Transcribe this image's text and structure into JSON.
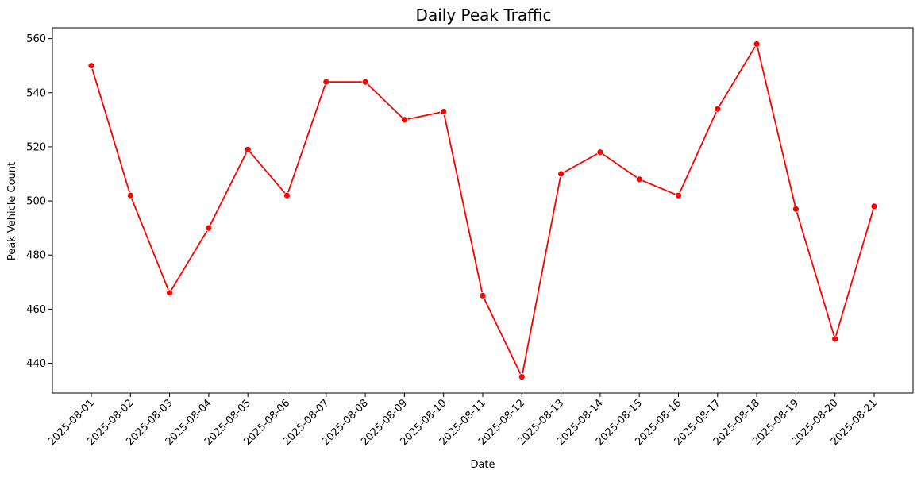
{
  "chart_data": {
    "type": "line",
    "title": "Daily Peak Traffic",
    "xlabel": "Date",
    "ylabel": "Peak Vehicle Count",
    "categories": [
      "2025-08-01",
      "2025-08-02",
      "2025-08-03",
      "2025-08-04",
      "2025-08-05",
      "2025-08-06",
      "2025-08-07",
      "2025-08-08",
      "2025-08-09",
      "2025-08-10",
      "2025-08-11",
      "2025-08-12",
      "2025-08-13",
      "2025-08-14",
      "2025-08-15",
      "2025-08-16",
      "2025-08-17",
      "2025-08-18",
      "2025-08-19",
      "2025-08-20",
      "2025-08-21"
    ],
    "series": [
      {
        "color": "#ff0000",
        "marker": "circle",
        "values": [
          550,
          502,
          466,
          490,
          519,
          502,
          544,
          544,
          530,
          533,
          465,
          435,
          510,
          518,
          508,
          502,
          534,
          558,
          497,
          449,
          498
        ]
      }
    ],
    "ylim": [
      429,
      564
    ],
    "yticks": [
      440,
      460,
      480,
      500,
      520,
      540,
      560
    ],
    "grid": false,
    "legend": "none"
  }
}
